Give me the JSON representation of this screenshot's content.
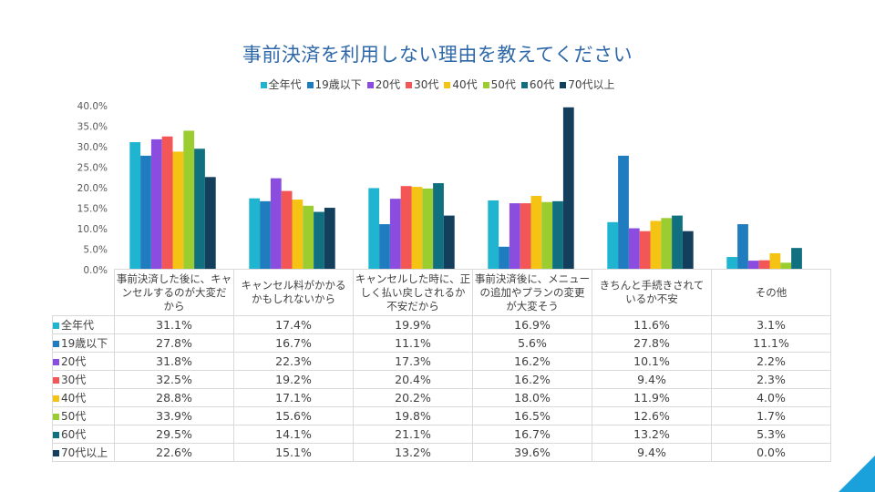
{
  "chart_data": {
    "type": "bar",
    "title": "事前決済を利用しない理由を教えてください",
    "categories": [
      "事前決済した後に、キャンセルするのが大変だから",
      "キャンセル料がかかるかもしれないから",
      "キャンセルした時に、正しく払い戻しされるか不安だから",
      "事前決済後に、メニューの追加やプランの変更が大変そう",
      "きちんと手続きされているか不安",
      "その他"
    ],
    "category_lines": [
      [
        "事前決済した後に、キャ",
        "ンセルするのが大変だ",
        "から"
      ],
      [
        "キャンセル料がかかる",
        "かもしれないから"
      ],
      [
        "キャンセルした時に、正",
        "しく払い戻しされるか",
        "不安だから"
      ],
      [
        "事前決済後に、メニュー",
        "の追加やプランの変更",
        "が大変そう"
      ],
      [
        "きちんと手続きされて",
        "いるか不安"
      ],
      [
        "その他"
      ]
    ],
    "series": [
      {
        "name": "全年代",
        "color": "#1fb5d1",
        "values": [
          31.1,
          17.4,
          19.9,
          16.9,
          11.6,
          3.1
        ],
        "labels": [
          "31.1%",
          "17.4%",
          "19.9%",
          "16.9%",
          "11.6%",
          "3.1%"
        ]
      },
      {
        "name": "19歳以下",
        "color": "#1f7dbf",
        "values": [
          27.8,
          16.7,
          11.1,
          5.6,
          27.8,
          11.1
        ],
        "labels": [
          "27.8%",
          "16.7%",
          "11.1%",
          "5.6%",
          "27.8%",
          "11.1%"
        ]
      },
      {
        "name": "20代",
        "color": "#8a4de0",
        "values": [
          31.8,
          22.3,
          17.3,
          16.2,
          10.1,
          2.2
        ],
        "labels": [
          "31.8%",
          "22.3%",
          "17.3%",
          "16.2%",
          "10.1%",
          "2.2%"
        ]
      },
      {
        "name": "30代",
        "color": "#f25656",
        "values": [
          32.5,
          19.2,
          20.4,
          16.2,
          9.4,
          2.3
        ],
        "labels": [
          "32.5%",
          "19.2%",
          "20.4%",
          "16.2%",
          "9.4%",
          "2.3%"
        ]
      },
      {
        "name": "40代",
        "color": "#f5c313",
        "values": [
          28.8,
          17.1,
          20.2,
          18.0,
          11.9,
          4.0
        ],
        "labels": [
          "28.8%",
          "17.1%",
          "20.2%",
          "18.0%",
          "11.9%",
          "4.0%"
        ]
      },
      {
        "name": "50代",
        "color": "#9bcc30",
        "values": [
          33.9,
          15.6,
          19.8,
          16.5,
          12.6,
          1.7
        ],
        "labels": [
          "33.9%",
          "15.6%",
          "19.8%",
          "16.5%",
          "12.6%",
          "1.7%"
        ]
      },
      {
        "name": "60代",
        "color": "#10707f",
        "values": [
          29.5,
          14.1,
          21.1,
          16.7,
          13.2,
          5.3
        ],
        "labels": [
          "29.5%",
          "14.1%",
          "21.1%",
          "16.7%",
          "13.2%",
          "5.3%"
        ]
      },
      {
        "name": "70代以上",
        "color": "#133f5c",
        "values": [
          22.6,
          15.1,
          13.2,
          39.6,
          9.4,
          0.0
        ],
        "labels": [
          "22.6%",
          "15.1%",
          "13.2%",
          "39.6%",
          "9.4%",
          "0.0%"
        ]
      }
    ],
    "y_ticks": [
      "0.0%",
      "5.0%",
      "10.0%",
      "15.0%",
      "20.0%",
      "25.0%",
      "30.0%",
      "35.0%",
      "40.0%"
    ],
    "ylim": [
      0,
      40
    ],
    "legend_position": "top",
    "grid": false
  },
  "decoration_color": "#1aa1dc"
}
